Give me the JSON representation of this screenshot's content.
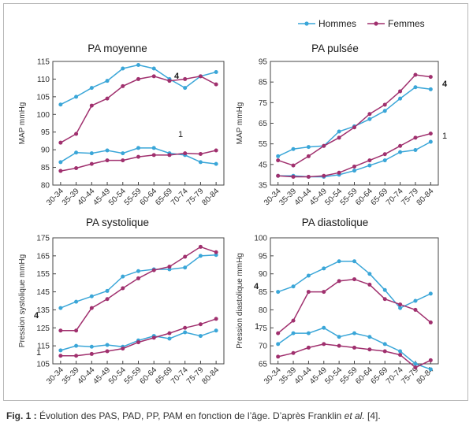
{
  "figure": {
    "legend": {
      "hommes": {
        "label": "Hommes",
        "color": "#3aa6d8"
      },
      "femmes": {
        "label": "Femmes",
        "color": "#a0306e"
      }
    },
    "caption": {
      "label": "Fig. 1 :",
      "text_before": " Évolution des PAS, PAD, PP, PAM en fonction de l’âge. D’après Franklin ",
      "etal": "et al.",
      "text_after": " [4]."
    }
  },
  "chart_data": [
    {
      "type": "line",
      "title": "PA moyenne",
      "xlabel": "",
      "ylabel": "MAP mmHg",
      "ylim": [
        80,
        115
      ],
      "yticks": [
        80,
        85,
        90,
        95,
        100,
        105,
        110,
        115
      ],
      "categories": [
        "30-34",
        "35-39",
        "40-44",
        "45-49",
        "50-54",
        "55-59",
        "60-64",
        "65-69",
        "70-74",
        "75-79",
        "80-84"
      ],
      "series": [
        {
          "name": "Hommes",
          "line": "1",
          "values": [
            86.5,
            89.2,
            89.0,
            89.8,
            89.0,
            90.5,
            90.5,
            89.0,
            88.5,
            86.5,
            86.0
          ]
        },
        {
          "name": "Hommes",
          "line": "4",
          "values": [
            102.8,
            105.0,
            107.5,
            109.5,
            113.0,
            114.0,
            113.0,
            110.0,
            107.5,
            110.8,
            112.0
          ]
        },
        {
          "name": "Femmes",
          "line": "1",
          "values": [
            84.0,
            84.8,
            86.0,
            87.0,
            87.0,
            88.0,
            88.5,
            88.5,
            89.0,
            88.8,
            89.8
          ]
        },
        {
          "name": "Femmes",
          "line": "4",
          "values": [
            92.0,
            94.5,
            102.5,
            104.5,
            108.0,
            110.0,
            110.8,
            109.5,
            110.0,
            110.8,
            108.5
          ]
        }
      ],
      "annotations": [
        "4",
        "1"
      ]
    },
    {
      "type": "line",
      "title": "PA pulsée",
      "xlabel": "",
      "ylabel": "MAP mmHg",
      "ylim": [
        35,
        95
      ],
      "yticks": [
        35,
        45,
        55,
        65,
        75,
        85,
        95
      ],
      "categories": [
        "30-34",
        "35-39",
        "40-44",
        "45-49",
        "50-54",
        "55-59",
        "60-64",
        "65-69",
        "70-74",
        "75-79",
        "80-84"
      ],
      "series": [
        {
          "name": "Hommes",
          "line": "1",
          "values": [
            39.5,
            39.5,
            39.0,
            39.0,
            40.0,
            42.0,
            44.5,
            47.0,
            51.0,
            52.0,
            56.0
          ]
        },
        {
          "name": "Hommes",
          "line": "4",
          "values": [
            49.0,
            52.5,
            53.5,
            54.0,
            61.0,
            63.5,
            67.0,
            71.0,
            77.0,
            82.5,
            81.5
          ]
        },
        {
          "name": "Femmes",
          "line": "1",
          "values": [
            39.5,
            39.0,
            39.0,
            39.5,
            41.0,
            44.0,
            47.0,
            50.0,
            54.0,
            58.0,
            60.0
          ]
        },
        {
          "name": "Femmes",
          "line": "4",
          "values": [
            47.0,
            44.5,
            49.0,
            54.0,
            58.0,
            63.0,
            69.5,
            74.0,
            80.5,
            88.5,
            87.5
          ]
        }
      ],
      "annotations": [
        "4",
        "1"
      ]
    },
    {
      "type": "line",
      "title": "PA systolique",
      "xlabel": "",
      "ylabel": "Pression systolique mmHg",
      "ylim": [
        105,
        175
      ],
      "yticks": [
        105,
        115,
        125,
        135,
        145,
        155,
        165,
        175
      ],
      "categories": [
        "30-34",
        "35-39",
        "40-44",
        "45-49",
        "50-54",
        "55-59",
        "60-64",
        "65-69",
        "70-74",
        "75-79",
        "80-84"
      ],
      "series": [
        {
          "name": "Hommes",
          "line": "1",
          "values": [
            112.5,
            115.0,
            114.5,
            115.5,
            114.5,
            118.0,
            120.5,
            119.0,
            122.5,
            120.5,
            123.5
          ]
        },
        {
          "name": "Hommes",
          "line": "4",
          "values": [
            136.0,
            139.5,
            142.5,
            145.5,
            153.5,
            156.5,
            157.5,
            157.5,
            158.5,
            165.0,
            165.5
          ]
        },
        {
          "name": "Femmes",
          "line": "1",
          "values": [
            109.5,
            109.5,
            110.5,
            112.0,
            113.5,
            117.0,
            119.5,
            122.0,
            125.0,
            127.0,
            130.0
          ]
        },
        {
          "name": "Femmes",
          "line": "4",
          "values": [
            123.5,
            123.5,
            136.0,
            141.0,
            147.0,
            152.5,
            157.0,
            159.0,
            164.5,
            170.0,
            167.0
          ]
        }
      ],
      "annotations": [
        "4",
        "1"
      ]
    },
    {
      "type": "line",
      "title": "PA diastolique",
      "xlabel": "",
      "ylabel": "Pression diastolique mmHg",
      "ylim": [
        65,
        100
      ],
      "yticks": [
        65,
        70,
        75,
        80,
        85,
        90,
        95,
        100
      ],
      "categories": [
        "30-34",
        "35-39",
        "40-44",
        "45-49",
        "50-54",
        "55-59",
        "60-64",
        "65-69",
        "70-74",
        "75-79",
        "80-84"
      ],
      "series": [
        {
          "name": "Hommes",
          "line": "1",
          "values": [
            70.5,
            73.5,
            73.5,
            75.0,
            72.5,
            73.5,
            72.5,
            70.5,
            68.5,
            65.0,
            63.5
          ]
        },
        {
          "name": "Hommes",
          "line": "4",
          "values": [
            85.0,
            86.5,
            89.5,
            91.5,
            93.5,
            93.5,
            90.0,
            85.5,
            80.5,
            82.5,
            84.5
          ]
        },
        {
          "name": "Femmes",
          "line": "1",
          "values": [
            67.0,
            68.0,
            69.5,
            70.5,
            70.0,
            69.5,
            69.0,
            68.5,
            67.5,
            64.0,
            66.0
          ]
        },
        {
          "name": "Femmes",
          "line": "4",
          "values": [
            73.5,
            77.0,
            85.0,
            85.0,
            88.0,
            88.5,
            87.0,
            83.0,
            81.5,
            80.0,
            76.5
          ]
        }
      ],
      "annotations": [
        "4",
        "1"
      ]
    }
  ]
}
